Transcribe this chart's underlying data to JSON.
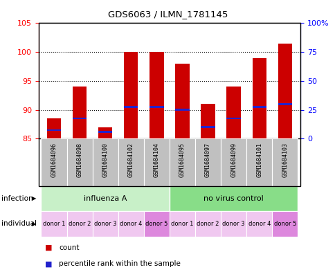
{
  "title": "GDS6063 / ILMN_1781145",
  "samples": [
    "GSM1684096",
    "GSM1684098",
    "GSM1684100",
    "GSM1684102",
    "GSM1684104",
    "GSM1684095",
    "GSM1684097",
    "GSM1684099",
    "GSM1684101",
    "GSM1684103"
  ],
  "bar_tops": [
    88.5,
    94.0,
    87.0,
    100.0,
    100.0,
    98.0,
    91.0,
    94.0,
    99.0,
    101.5
  ],
  "blue_marker_vals": [
    86.5,
    88.5,
    86.2,
    90.5,
    90.5,
    90.0,
    87.0,
    88.5,
    90.5,
    91.0
  ],
  "ylim": [
    85,
    105
  ],
  "yticks_left": [
    85,
    90,
    95,
    100,
    105
  ],
  "yticks_right": [
    0,
    25,
    50,
    75,
    100
  ],
  "yticks_right_labels": [
    "0",
    "25",
    "50",
    "75",
    "100%"
  ],
  "infection_groups": [
    {
      "label": "influenza A",
      "start": 0,
      "end": 5,
      "color": "#c8f0c8"
    },
    {
      "label": "no virus control",
      "start": 5,
      "end": 10,
      "color": "#88dd88"
    }
  ],
  "donors": [
    "donor 1",
    "donor 2",
    "donor 3",
    "donor 4",
    "donor 5",
    "donor 1",
    "donor 2",
    "donor 3",
    "donor 4",
    "donor 5"
  ],
  "donor_colors": [
    "#f0c8f0",
    "#f0c8f0",
    "#f0c8f0",
    "#f0c8f0",
    "#dd88dd",
    "#f0c8f0",
    "#f0c8f0",
    "#f0c8f0",
    "#f0c8f0",
    "#dd88dd"
  ],
  "bar_color": "#cc0000",
  "blue_color": "#2222cc",
  "bar_width": 0.55,
  "sample_bg_color": "#c0c0c0",
  "legend_count_color": "#cc0000",
  "legend_pct_color": "#2222cc"
}
